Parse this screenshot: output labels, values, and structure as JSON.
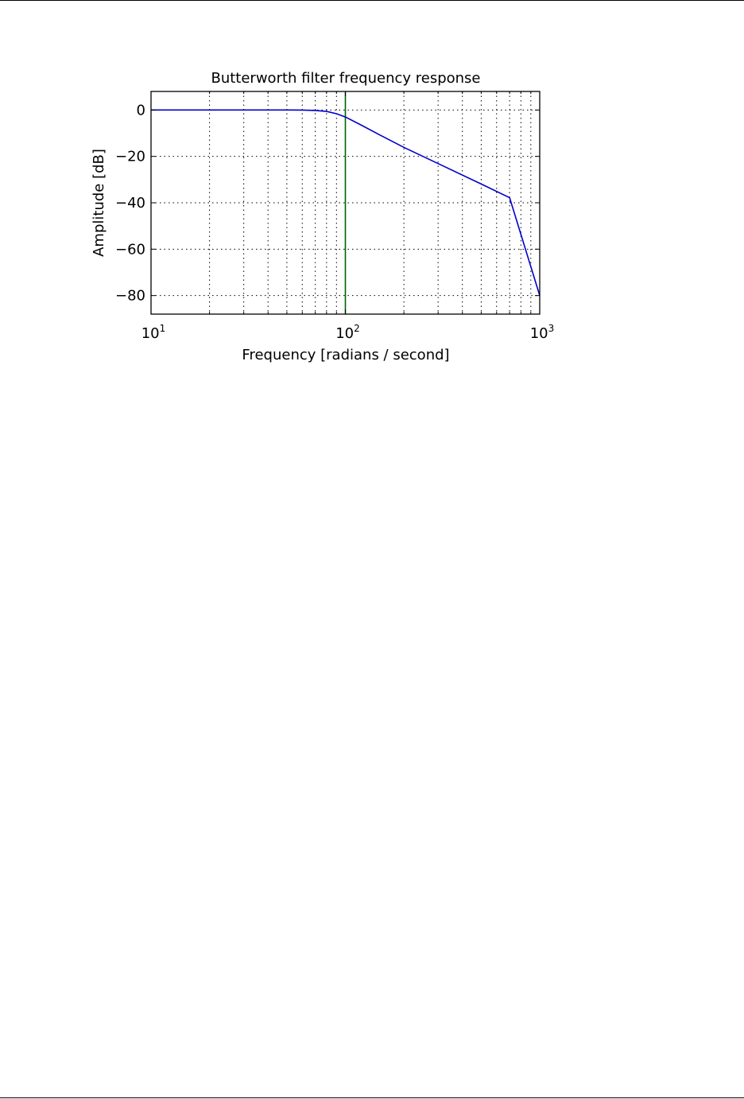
{
  "chart_data": {
    "type": "line",
    "title": "Butterworth filter frequency response",
    "xlabel": "Frequency [radians / second]",
    "ylabel": "Amplitude [dB]",
    "xscale": "log",
    "xlim": [
      10,
      1000
    ],
    "ylim": [
      -88,
      8
    ],
    "grid": true,
    "x_ticks": [
      {
        "value": 10,
        "base": "10",
        "exp": "1"
      },
      {
        "value": 100,
        "base": "10",
        "exp": "2"
      },
      {
        "value": 1000,
        "base": "10",
        "exp": "3"
      }
    ],
    "y_ticks": [
      {
        "value": 0,
        "label": "0"
      },
      {
        "value": -20,
        "label": "−20"
      },
      {
        "value": -40,
        "label": "−40"
      },
      {
        "value": -60,
        "label": "−60"
      },
      {
        "value": -80,
        "label": "−80"
      }
    ],
    "series": [
      {
        "color": "#0000cc",
        "x": [
          10,
          20,
          30,
          40,
          50,
          60,
          70,
          80,
          90,
          100,
          120,
          150,
          200,
          300,
          500,
          700,
          1000
        ],
        "y": [
          0,
          0,
          0,
          0,
          0,
          -0.04,
          -0.2,
          -0.6,
          -1.6,
          -3.0,
          -6.4,
          -10.7,
          -16.1,
          -23.1,
          -31.9,
          -37.8,
          -80
        ]
      }
    ],
    "annotations": [
      {
        "type": "vline",
        "x": 100,
        "color": "#006400"
      }
    ]
  }
}
